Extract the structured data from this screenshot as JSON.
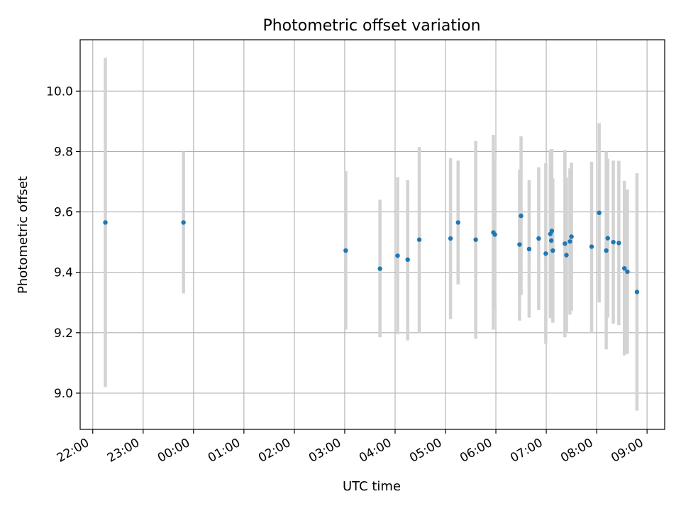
{
  "chart_data": {
    "type": "scatter",
    "title": "Photometric offset variation",
    "xlabel": "UTC time",
    "ylabel": "Photometric offset",
    "x_unit": "hours",
    "xlim": [
      21.75,
      33.35
    ],
    "ylim": [
      8.88,
      10.17
    ],
    "grid": true,
    "x_ticks": [
      {
        "value": 22,
        "label": "22:00"
      },
      {
        "value": 23,
        "label": "23:00"
      },
      {
        "value": 24,
        "label": "00:00"
      },
      {
        "value": 25,
        "label": "01:00"
      },
      {
        "value": 26,
        "label": "02:00"
      },
      {
        "value": 27,
        "label": "03:00"
      },
      {
        "value": 28,
        "label": "04:00"
      },
      {
        "value": 29,
        "label": "05:00"
      },
      {
        "value": 30,
        "label": "06:00"
      },
      {
        "value": 31,
        "label": "07:00"
      },
      {
        "value": 32,
        "label": "08:00"
      },
      {
        "value": 33,
        "label": "09:00"
      }
    ],
    "y_ticks": [
      {
        "value": 9.0,
        "label": "9.0"
      },
      {
        "value": 9.2,
        "label": "9.2"
      },
      {
        "value": 9.4,
        "label": "9.4"
      },
      {
        "value": 9.6,
        "label": "9.6"
      },
      {
        "value": 9.8,
        "label": "9.8"
      },
      {
        "value": 10.0,
        "label": "10.0"
      }
    ],
    "colors": {
      "point": "#1f77b4",
      "errorbar": "#d3d3d3",
      "grid": "#b0b0b0"
    },
    "points": [
      {
        "x": 22.25,
        "y": 9.565,
        "ylo": 9.02,
        "yhi": 10.11
      },
      {
        "x": 23.8,
        "y": 9.565,
        "ylo": 9.33,
        "yhi": 9.8
      },
      {
        "x": 27.02,
        "y": 9.472,
        "ylo": 9.21,
        "yhi": 9.735
      },
      {
        "x": 27.7,
        "y": 9.412,
        "ylo": 9.185,
        "yhi": 9.64
      },
      {
        "x": 28.05,
        "y": 9.455,
        "ylo": 9.195,
        "yhi": 9.715
      },
      {
        "x": 28.25,
        "y": 9.442,
        "ylo": 9.175,
        "yhi": 9.705
      },
      {
        "x": 28.48,
        "y": 9.508,
        "ylo": 9.2,
        "yhi": 9.815
      },
      {
        "x": 29.1,
        "y": 9.512,
        "ylo": 9.245,
        "yhi": 9.778
      },
      {
        "x": 29.25,
        "y": 9.565,
        "ylo": 9.36,
        "yhi": 9.77
      },
      {
        "x": 29.6,
        "y": 9.508,
        "ylo": 9.18,
        "yhi": 9.835
      },
      {
        "x": 29.95,
        "y": 9.532,
        "ylo": 9.21,
        "yhi": 9.855
      },
      {
        "x": 29.98,
        "y": 9.525,
        "ylo": 9.28,
        "yhi": 9.77
      },
      {
        "x": 30.47,
        "y": 9.492,
        "ylo": 9.24,
        "yhi": 9.74
      },
      {
        "x": 30.5,
        "y": 9.587,
        "ylo": 9.325,
        "yhi": 9.85
      },
      {
        "x": 30.66,
        "y": 9.477,
        "ylo": 9.25,
        "yhi": 9.705
      },
      {
        "x": 30.85,
        "y": 9.512,
        "ylo": 9.275,
        "yhi": 9.748
      },
      {
        "x": 30.99,
        "y": 9.462,
        "ylo": 9.163,
        "yhi": 9.761
      },
      {
        "x": 31.08,
        "y": 9.527,
        "ylo": 9.248,
        "yhi": 9.806
      },
      {
        "x": 31.1,
        "y": 9.505,
        "ylo": 9.25,
        "yhi": 9.76
      },
      {
        "x": 31.11,
        "y": 9.537,
        "ylo": 9.266,
        "yhi": 9.808
      },
      {
        "x": 31.13,
        "y": 9.472,
        "ylo": 9.233,
        "yhi": 9.711
      },
      {
        "x": 31.37,
        "y": 9.495,
        "ylo": 9.185,
        "yhi": 9.805
      },
      {
        "x": 31.4,
        "y": 9.457,
        "ylo": 9.2,
        "yhi": 9.714
      },
      {
        "x": 31.47,
        "y": 9.502,
        "ylo": 9.26,
        "yhi": 9.744
      },
      {
        "x": 31.5,
        "y": 9.518,
        "ylo": 9.273,
        "yhi": 9.763
      },
      {
        "x": 31.9,
        "y": 9.485,
        "ylo": 9.2,
        "yhi": 9.766
      },
      {
        "x": 32.05,
        "y": 9.597,
        "ylo": 9.3,
        "yhi": 9.894
      },
      {
        "x": 32.19,
        "y": 9.472,
        "ylo": 9.145,
        "yhi": 9.8
      },
      {
        "x": 32.22,
        "y": 9.513,
        "ylo": 9.25,
        "yhi": 9.776
      },
      {
        "x": 32.33,
        "y": 9.5,
        "ylo": 9.23,
        "yhi": 9.77
      },
      {
        "x": 32.44,
        "y": 9.497,
        "ylo": 9.225,
        "yhi": 9.769
      },
      {
        "x": 32.55,
        "y": 9.413,
        "ylo": 9.125,
        "yhi": 9.703
      },
      {
        "x": 32.61,
        "y": 9.402,
        "ylo": 9.13,
        "yhi": 9.674
      },
      {
        "x": 32.8,
        "y": 9.335,
        "ylo": 8.942,
        "yhi": 9.728
      }
    ]
  }
}
